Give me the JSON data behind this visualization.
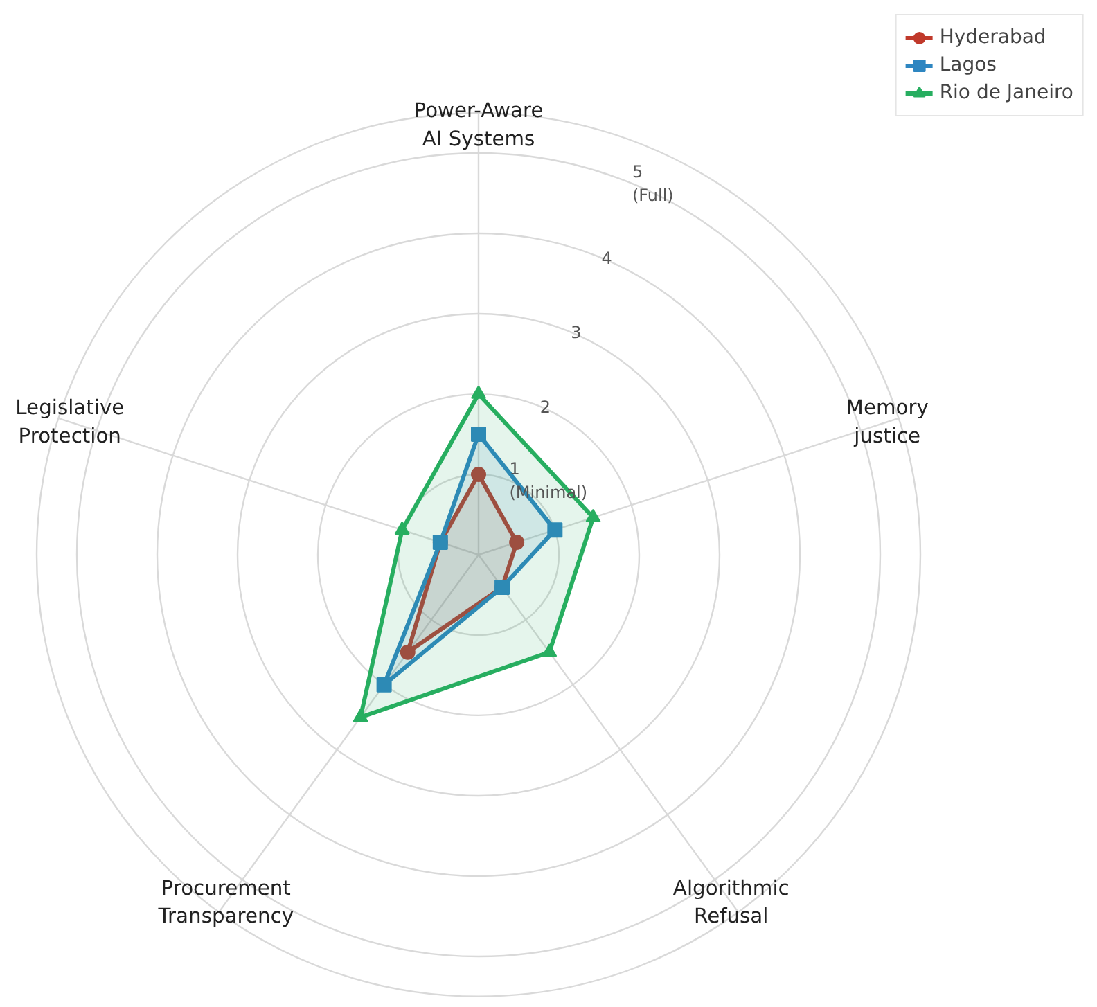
{
  "chart_data": {
    "type": "radar",
    "categories": [
      "Power-Aware\nAI Systems",
      "Memory\njustice",
      "Algorithmic\nRefusal",
      "Procurement\nTransparency",
      "Legislative\nProtection"
    ],
    "series": [
      {
        "name": "Hyderabad",
        "color": "#c0392b",
        "marker": "circle",
        "values": [
          1.0,
          0.5,
          0.5,
          1.5,
          0.5
        ]
      },
      {
        "name": "Lagos",
        "color": "#2e86c1",
        "marker": "square",
        "values": [
          1.5,
          1.0,
          0.5,
          2.0,
          0.5
        ]
      },
      {
        "name": "Rio de Janeiro",
        "color": "#27ae60",
        "marker": "triangle",
        "values": [
          2.0,
          1.5,
          1.5,
          2.5,
          1.0
        ]
      }
    ],
    "ylim": [
      0,
      5.5
    ],
    "yticks": [
      {
        "value": 1,
        "label": "1\n(Minimal)"
      },
      2,
      3,
      4,
      {
        "value": 5,
        "label": "5\n(Full)"
      }
    ],
    "grid": true,
    "legend": "top right"
  }
}
